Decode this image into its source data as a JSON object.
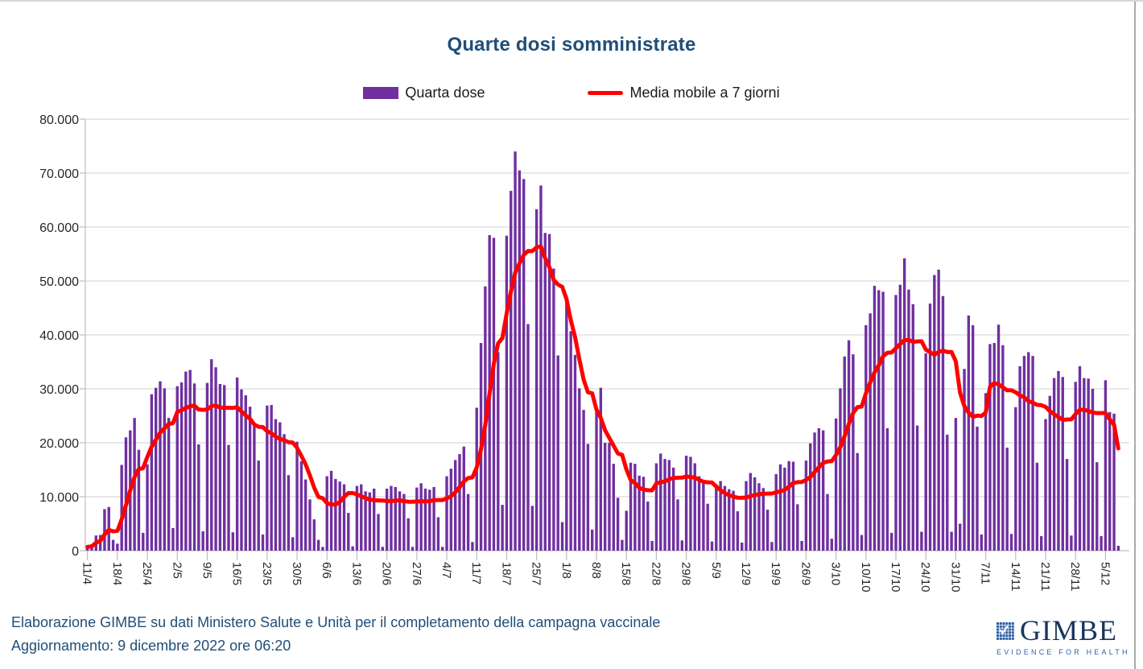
{
  "title": "Quarte dosi somministrate",
  "legend": {
    "items": [
      {
        "label": "Quarta dose",
        "type": "bar",
        "color": "#7030A0"
      },
      {
        "label": "Media mobile a 7 giorni",
        "type": "line",
        "color": "#FF0000"
      }
    ]
  },
  "footer": {
    "line1": "Elaborazione GIMBE su dati Ministero Salute e Unità per il completamento della campagna vaccinale",
    "line2": "Aggiornamento: 9 dicembre 2022 ore 06:20"
  },
  "logo": {
    "name": "GIMBE",
    "tagline": "EVIDENCE FOR HEALTH",
    "icon": "check-grid-icon",
    "color": "#2E5FA3"
  },
  "chart_data": {
    "type": "bar",
    "title": "Quarte dosi somministrate",
    "xlabel": "",
    "ylabel": "",
    "ylim": [
      0,
      80000
    ],
    "grid": "horizontal",
    "legend_position": "top-center",
    "x_unit": "daily values, 11/4/2022 through 8/12/2022; tick labels mark Mondays",
    "x_tick_labels": [
      "11/4",
      "18/4",
      "25/4",
      "2/5",
      "9/5",
      "16/5",
      "23/5",
      "30/5",
      "6/6",
      "13/6",
      "20/6",
      "27/6",
      "4/7",
      "11/7",
      "18/7",
      "25/7",
      "1/8",
      "8/8",
      "15/8",
      "22/8",
      "29/8",
      "5/9",
      "12/9",
      "19/9",
      "26/9",
      "3/10",
      "10/10",
      "17/10",
      "24/10",
      "31/10",
      "7/11",
      "14/11",
      "21/11",
      "28/11",
      "5/12"
    ],
    "y_ticks": [
      {
        "value": 0,
        "label": "0"
      },
      {
        "value": 10000,
        "label": "10.000"
      },
      {
        "value": 20000,
        "label": "20.000"
      },
      {
        "value": 30000,
        "label": "30.000"
      },
      {
        "value": 40000,
        "label": "40.000"
      },
      {
        "value": 50000,
        "label": "50.000"
      },
      {
        "value": 60000,
        "label": "60.000"
      },
      {
        "value": 70000,
        "label": "70.000"
      },
      {
        "value": 80000,
        "label": "80.000"
      }
    ],
    "series": [
      {
        "name": "Quarta dose",
        "type": "bar",
        "color": "#7030A0",
        "values": [
          700,
          900,
          2800,
          2900,
          7700,
          8100,
          2000,
          1300,
          15900,
          21000,
          22300,
          24600,
          18700,
          3300,
          16000,
          29000,
          30200,
          31400,
          30100,
          24600,
          4200,
          30500,
          31200,
          33200,
          33500,
          31000,
          19700,
          3600,
          31100,
          35500,
          34000,
          30900,
          30700,
          19600,
          3400,
          32100,
          29900,
          28800,
          26700,
          23200,
          16700,
          3000,
          26900,
          27000,
          24400,
          23800,
          21600,
          14000,
          2500,
          20200,
          16600,
          13200,
          9500,
          5800,
          2000,
          700,
          13800,
          14800,
          13300,
          12800,
          12300,
          7000,
          800,
          12000,
          12300,
          11000,
          10800,
          11500,
          6800,
          700,
          11500,
          12000,
          11800,
          11000,
          10500,
          6000,
          700,
          11700,
          12500,
          11500,
          11300,
          11800,
          6200,
          700,
          13800,
          15200,
          16800,
          17900,
          19300,
          10500,
          1600,
          26500,
          38500,
          49000,
          58500,
          58000,
          36800,
          8500,
          58400,
          66700,
          74000,
          70500,
          68900,
          42000,
          8300,
          63300,
          67700,
          58900,
          58700,
          52300,
          36200,
          5300,
          47300,
          40700,
          36300,
          30100,
          26100,
          19800,
          3900,
          26200,
          30200,
          20000,
          20000,
          16100,
          9800,
          2000,
          7400,
          16300,
          16100,
          13900,
          13700,
          9100,
          1800,
          16200,
          18000,
          17000,
          16800,
          15400,
          9500,
          1900,
          17600,
          17400,
          16200,
          13800,
          13100,
          8700,
          1700,
          12300,
          12900,
          12000,
          11400,
          11100,
          7300,
          1500,
          12900,
          14400,
          13600,
          12500,
          11600,
          7600,
          1600,
          14200,
          16000,
          15400,
          16600,
          16500,
          8600,
          1800,
          16700,
          19900,
          21900,
          22700,
          22300,
          10500,
          2200,
          24500,
          30100,
          36000,
          39000,
          36400,
          18100,
          2900,
          41800,
          44000,
          49100,
          48300,
          48000,
          22700,
          3300,
          47400,
          49300,
          54200,
          48400,
          45700,
          23200,
          3500,
          36600,
          45800,
          51100,
          52100,
          47200,
          21500,
          3500,
          24600,
          5000,
          33700,
          43600,
          41800,
          23000,
          3000,
          29200,
          38300,
          38500,
          41900,
          38100,
          19100,
          3100,
          26600,
          34200,
          36100,
          36800,
          36100,
          16300,
          2700,
          24400,
          28700,
          32000,
          33300,
          32200,
          17000,
          2800,
          31300,
          34200,
          32000,
          31900,
          30000,
          16400,
          2700,
          31600,
          25700,
          25400,
          900
        ]
      },
      {
        "name": "Media mobile a 7 giorni",
        "type": "line",
        "color": "#FF0000",
        "derived": "7-day trailing moving average of series 'Quarta dose'"
      }
    ]
  }
}
